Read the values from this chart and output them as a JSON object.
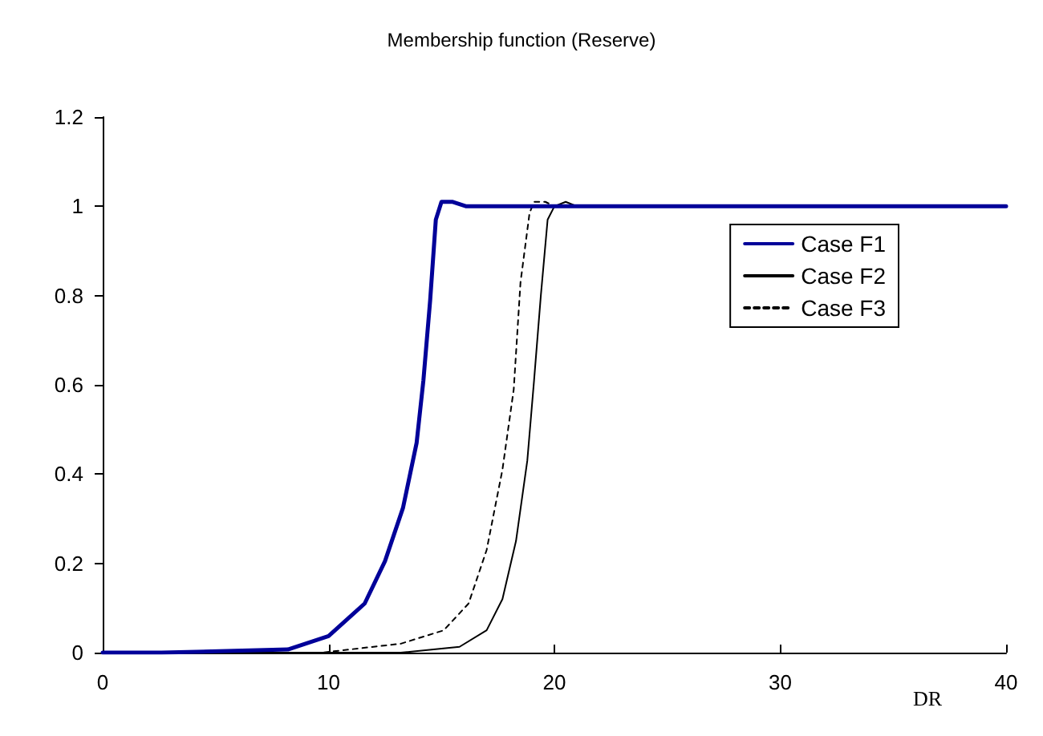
{
  "chart_data": {
    "type": "line",
    "title": "Membership function (Reserve)",
    "xlabel": "DR",
    "xlim": [
      0,
      40
    ],
    "xticks": [
      0,
      10,
      20,
      30,
      40
    ],
    "ylim": [
      0,
      1.2
    ],
    "yticks": [
      0,
      0.2,
      0.4,
      0.6,
      0.8,
      1,
      1.2
    ],
    "grid": false,
    "legend": "top right",
    "marker": "none",
    "series": [
      {
        "name": "Case F1",
        "color": "#000099",
        "line_style": "solid",
        "x": [
          0,
          2.6,
          8.2,
          10.0,
          11.6,
          12.5,
          13.3,
          13.9,
          14.2,
          14.5,
          14.75,
          15.0,
          15.5,
          16.1,
          40
        ],
        "values": [
          0,
          0,
          0.007,
          0.037,
          0.11,
          0.205,
          0.325,
          0.47,
          0.61,
          0.79,
          0.97,
          1.01,
          1.01,
          1,
          1
        ]
      },
      {
        "name": "Case F2",
        "color": "#000000",
        "line_style": "solid",
        "x": [
          0,
          13.2,
          15.8,
          17.0,
          17.7,
          18.3,
          18.8,
          19.1,
          19.4,
          19.7,
          20.0,
          20.5,
          21.0
        ],
        "values": [
          0,
          0,
          0.013,
          0.05,
          0.12,
          0.25,
          0.43,
          0.61,
          0.8,
          0.97,
          1,
          1.01,
          1
        ]
      },
      {
        "name": "Case F3",
        "color": "#000000",
        "line_style": "dotted",
        "x": [
          0,
          9.7,
          13.2,
          15.1,
          16.2,
          17.0,
          17.7,
          18.2,
          18.5,
          18.9,
          19.1,
          19.6,
          20.0
        ],
        "values": [
          0,
          0,
          0.02,
          0.05,
          0.11,
          0.23,
          0.41,
          0.59,
          0.83,
          0.985,
          1.01,
          1.01,
          1
        ]
      }
    ]
  }
}
